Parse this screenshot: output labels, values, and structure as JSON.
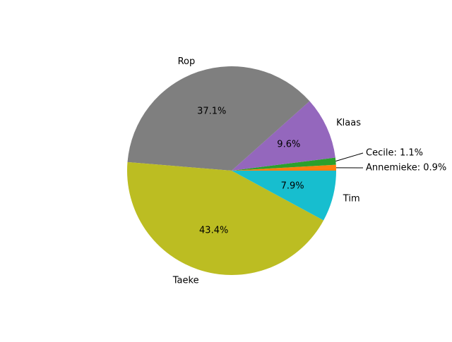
{
  "chart_data": {
    "type": "pie",
    "title": "",
    "start_angle": 0,
    "direction": "counterclockwise",
    "slices": [
      {
        "label": "Annemieke",
        "value": 0.9,
        "pct_label": "",
        "outer_label": "Annemieke: 0.9%",
        "color": "#ff7f0e",
        "callout": true
      },
      {
        "label": "Cecile",
        "value": 1.1,
        "pct_label": "",
        "outer_label": "Cecile: 1.1%",
        "color": "#2ca02c",
        "callout": true
      },
      {
        "label": "Klaas",
        "value": 9.6,
        "pct_label": "9.6%",
        "outer_label": "Klaas",
        "color": "#9467bd",
        "callout": false
      },
      {
        "label": "Rop",
        "value": 37.1,
        "pct_label": "37.1%",
        "outer_label": "Rop",
        "color": "#7f7f7f",
        "callout": false
      },
      {
        "label": "Taeke",
        "value": 43.4,
        "pct_label": "43.4%",
        "outer_label": "Taeke",
        "color": "#bcbd22",
        "callout": false
      },
      {
        "label": "Tim",
        "value": 7.9,
        "pct_label": "7.9%",
        "outer_label": "Tim",
        "color": "#17becf",
        "callout": false
      }
    ]
  }
}
